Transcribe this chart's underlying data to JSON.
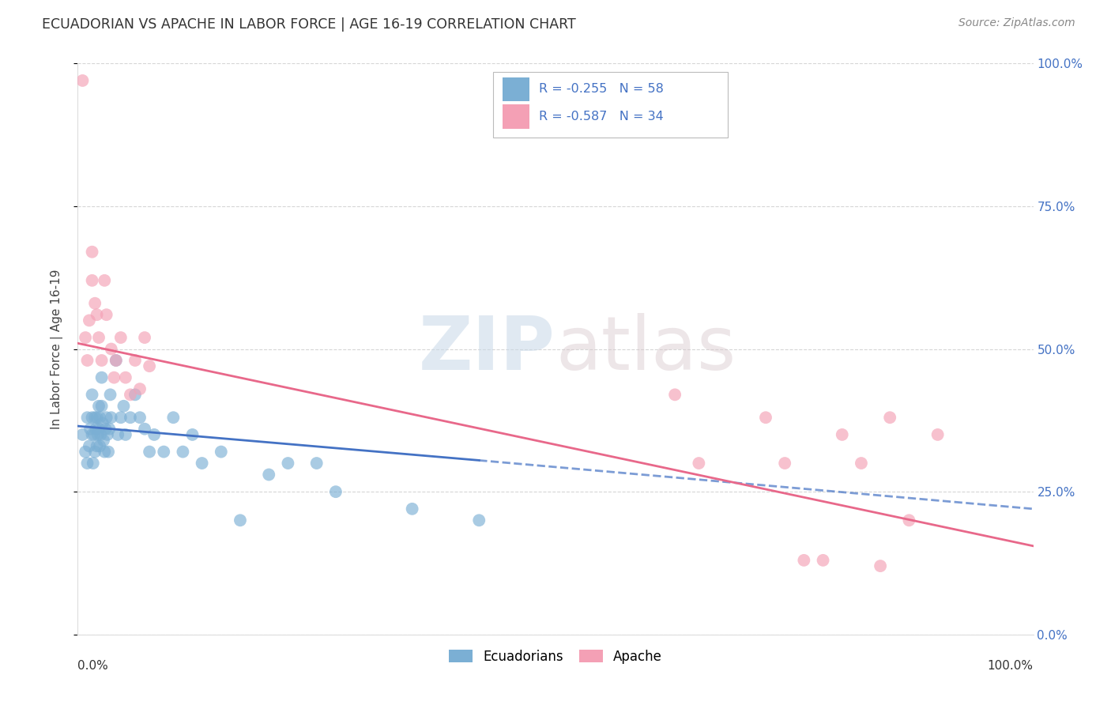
{
  "title": "ECUADORIAN VS APACHE IN LABOR FORCE | AGE 16-19 CORRELATION CHART",
  "source": "Source: ZipAtlas.com",
  "ylabel": "In Labor Force | Age 16-19",
  "xlim": [
    0,
    1
  ],
  "ylim": [
    0,
    1
  ],
  "ecuadorian_color": "#7BAFD4",
  "apache_color": "#F4A0B5",
  "ecuadorian_line_color": "#4472C4",
  "apache_line_color": "#E8688A",
  "ecuadorian_R": -0.255,
  "ecuadorian_N": 58,
  "apache_R": -0.587,
  "apache_N": 34,
  "legend_label_1": "Ecuadorians",
  "legend_label_2": "Apache",
  "watermark_zip": "ZIP",
  "watermark_atlas": "atlas",
  "background_color": "#ffffff",
  "grid_color": "#cccccc",
  "right_tick_color": "#4472C4",
  "ecuadorian_scatter_x": [
    0.005,
    0.008,
    0.01,
    0.01,
    0.012,
    0.013,
    0.015,
    0.015,
    0.015,
    0.016,
    0.017,
    0.018,
    0.018,
    0.019,
    0.02,
    0.02,
    0.021,
    0.022,
    0.022,
    0.023,
    0.023,
    0.024,
    0.025,
    0.025,
    0.026,
    0.027,
    0.028,
    0.029,
    0.03,
    0.031,
    0.032,
    0.033,
    0.034,
    0.035,
    0.04,
    0.042,
    0.045,
    0.048,
    0.05,
    0.055,
    0.06,
    0.065,
    0.07,
    0.075,
    0.08,
    0.09,
    0.1,
    0.11,
    0.12,
    0.13,
    0.15,
    0.17,
    0.2,
    0.22,
    0.25,
    0.27,
    0.35,
    0.42
  ],
  "ecuadorian_scatter_y": [
    0.35,
    0.32,
    0.3,
    0.38,
    0.33,
    0.36,
    0.35,
    0.38,
    0.42,
    0.3,
    0.35,
    0.38,
    0.32,
    0.36,
    0.33,
    0.38,
    0.35,
    0.4,
    0.36,
    0.33,
    0.38,
    0.35,
    0.4,
    0.45,
    0.37,
    0.34,
    0.32,
    0.36,
    0.38,
    0.35,
    0.32,
    0.36,
    0.42,
    0.38,
    0.48,
    0.35,
    0.38,
    0.4,
    0.35,
    0.38,
    0.42,
    0.38,
    0.36,
    0.32,
    0.35,
    0.32,
    0.38,
    0.32,
    0.35,
    0.3,
    0.32,
    0.2,
    0.28,
    0.3,
    0.3,
    0.25,
    0.22,
    0.2
  ],
  "apache_scatter_x": [
    0.005,
    0.008,
    0.01,
    0.012,
    0.015,
    0.015,
    0.018,
    0.02,
    0.022,
    0.025,
    0.028,
    0.03,
    0.035,
    0.038,
    0.04,
    0.045,
    0.05,
    0.055,
    0.06,
    0.065,
    0.07,
    0.075,
    0.625,
    0.65,
    0.72,
    0.74,
    0.76,
    0.78,
    0.8,
    0.82,
    0.84,
    0.85,
    0.87,
    0.9
  ],
  "apache_scatter_y": [
    0.97,
    0.52,
    0.48,
    0.55,
    0.62,
    0.67,
    0.58,
    0.56,
    0.52,
    0.48,
    0.62,
    0.56,
    0.5,
    0.45,
    0.48,
    0.52,
    0.45,
    0.42,
    0.48,
    0.43,
    0.52,
    0.47,
    0.42,
    0.3,
    0.38,
    0.3,
    0.13,
    0.13,
    0.35,
    0.3,
    0.12,
    0.38,
    0.2,
    0.35
  ],
  "ecu_line_x0": 0.0,
  "ecu_line_x_solid_end": 0.42,
  "ecu_line_x1": 1.0,
  "ecu_line_y0": 0.365,
  "ecu_line_y_solid_end": 0.305,
  "ecu_line_y1": 0.22,
  "apa_line_x0": 0.0,
  "apa_line_x1": 1.0,
  "apa_line_y0": 0.51,
  "apa_line_y1": 0.155,
  "ytick_values": [
    0.0,
    0.25,
    0.5,
    0.75,
    1.0
  ],
  "ytick_labels": [
    "0.0%",
    "25.0%",
    "50.0%",
    "75.0%",
    "100.0%"
  ]
}
